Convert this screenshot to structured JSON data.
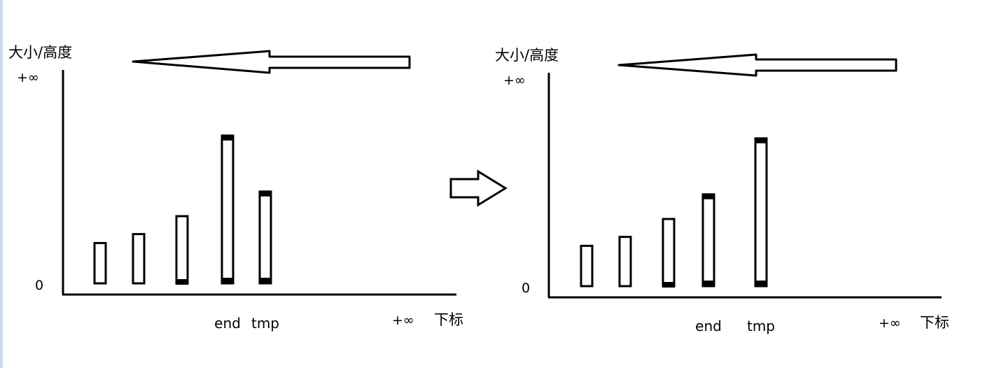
{
  "panels": [
    {
      "y_label": "大小/高度",
      "y_top_label": "+∞",
      "y_zero_label": "0",
      "x_end_label": "+∞",
      "x_label": "下标",
      "bars": [
        {
          "height": 0.18,
          "marker": "none",
          "caption": ""
        },
        {
          "height": 0.22,
          "marker": "none",
          "caption": ""
        },
        {
          "height": 0.3,
          "marker": "bottom",
          "caption": ""
        },
        {
          "height": 0.66,
          "marker": "both",
          "caption": "end"
        },
        {
          "height": 0.41,
          "marker": "both",
          "caption": "tmp"
        }
      ]
    },
    {
      "y_label": "大小/高度",
      "y_top_label": "+∞",
      "y_zero_label": "0",
      "x_end_label": "+∞",
      "x_label": "下标",
      "bars": [
        {
          "height": 0.18,
          "marker": "none",
          "caption": ""
        },
        {
          "height": 0.22,
          "marker": "none",
          "caption": ""
        },
        {
          "height": 0.3,
          "marker": "bottom",
          "caption": ""
        },
        {
          "height": 0.41,
          "marker": "both",
          "caption": "end"
        },
        {
          "height": 0.66,
          "marker": "both",
          "caption": "tmp"
        }
      ]
    }
  ],
  "transition": {
    "direction": "right"
  },
  "top_arrow": {
    "direction": "left"
  }
}
